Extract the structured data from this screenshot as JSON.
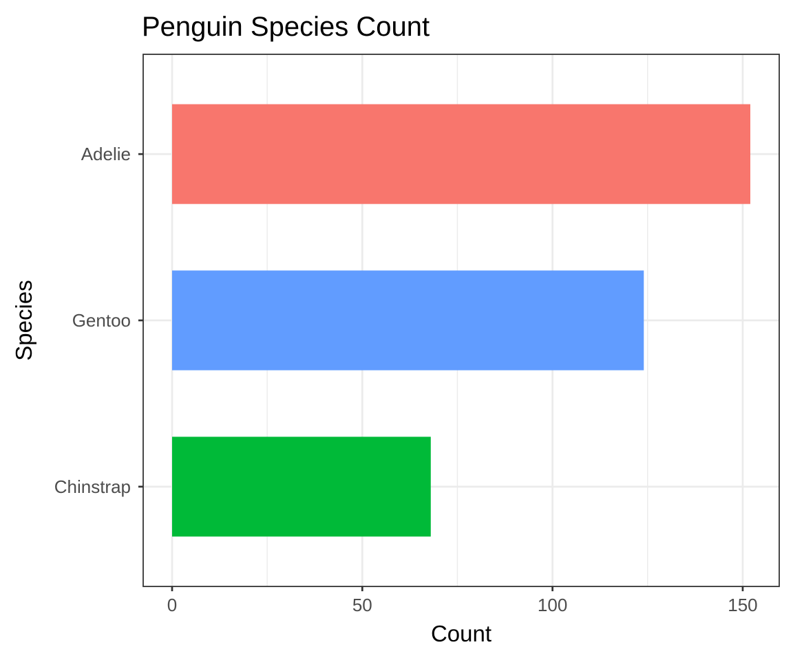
{
  "chart_data": {
    "type": "bar",
    "orientation": "horizontal",
    "title": "Penguin Species Count",
    "xlabel": "Count",
    "ylabel": "Species",
    "categories": [
      "Adelie",
      "Gentoo",
      "Chinstrap"
    ],
    "values": [
      152,
      124,
      68
    ],
    "colors": [
      "#F8766D",
      "#619CFF",
      "#00BA38"
    ],
    "xlim": [
      -7.6,
      159.6
    ],
    "xticks": [
      0,
      50,
      100,
      150
    ],
    "xticks_minor": [
      25,
      75,
      125
    ],
    "grid": true,
    "legend": "none"
  }
}
